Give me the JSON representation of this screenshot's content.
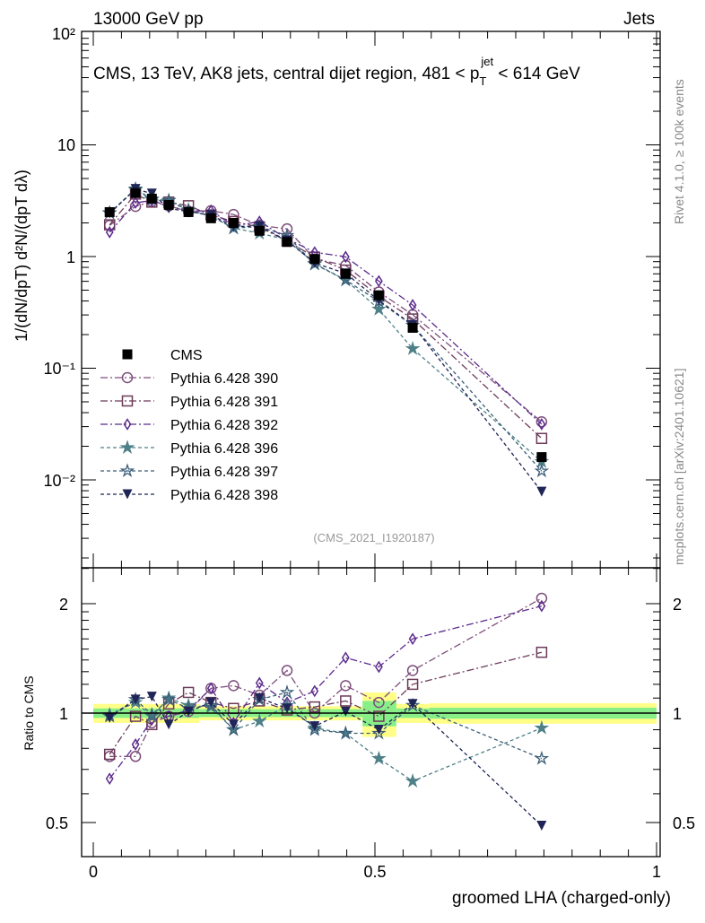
{
  "chart_data": {
    "type": "line",
    "top_left_label": "13000 GeV pp",
    "top_right_label": "Jets",
    "title": "CMS, 13 TeV, AK8 jets, central dijet region, 481 < p",
    "title_sub": "T",
    "title_sup": "jet",
    "title_end": " < 614 GeV",
    "ylabel": "1/(dN/dpT) d²N/(dpT dλ)",
    "ratio_ylabel": "Ratio to CMS",
    "xlabel": "groomed LHA (charged-only)",
    "side_label_top": "Rivet 4.1.0, ≥ 100k events",
    "side_label_bottom": "mcplots.cern.ch [arXiv:2401.10621]",
    "analysis_id": "(CMS_2021_I1920187)",
    "xlim": [
      0,
      1
    ],
    "ylim": [
      0.001,
      100
    ],
    "ratio_ylim": [
      0.4,
      2.5
    ],
    "x_ticks": [
      "0",
      "0.5",
      "1"
    ],
    "y_ticks": [
      "10⁻²",
      "10⁻¹",
      "1",
      "10",
      "10²"
    ],
    "ratio_ticks": [
      "0.5",
      "1",
      "2"
    ],
    "x": [
      0.029,
      0.075,
      0.104,
      0.134,
      0.169,
      0.209,
      0.249,
      0.295,
      0.344,
      0.393,
      0.448,
      0.507,
      0.567,
      0.796
    ],
    "cms": {
      "name": "CMS",
      "color": "#000000",
      "values": [
        2.5,
        3.7,
        3.3,
        2.9,
        2.5,
        2.2,
        2.0,
        1.7,
        1.35,
        0.95,
        0.7,
        0.45,
        0.23,
        0.016
      ]
    },
    "series": [
      {
        "name": "Pythia 6.428 390",
        "marker": "circle",
        "color": "#7e4f7c",
        "dash": "8 3 2 3",
        "ratio": [
          0.76,
          0.76,
          0.94,
          0.98,
          1.01,
          1.17,
          1.19,
          1.12,
          1.31,
          1.0,
          1.19,
          1.07,
          1.31,
          2.07
        ]
      },
      {
        "name": "Pythia 6.428 391",
        "marker": "square",
        "color": "#6d3b59",
        "dash": "8 3 2 3",
        "ratio": [
          0.77,
          0.98,
          0.93,
          1.06,
          1.14,
          1.07,
          1.03,
          1.08,
          1.02,
          1.04,
          1.08,
          0.98,
          1.2,
          1.47
        ]
      },
      {
        "name": "Pythia 6.428 392",
        "marker": "diamond",
        "color": "#5b2a8c",
        "dash": "8 3 2 3",
        "ratio": [
          0.66,
          0.82,
          0.96,
          0.98,
          1.02,
          1.17,
          0.94,
          1.21,
          1.07,
          1.15,
          1.42,
          1.34,
          1.6,
          1.97
        ]
      },
      {
        "name": "Pythia 6.428 396",
        "marker": "star",
        "color": "#4e8088",
        "dash": "4 3",
        "ratio": [
          0.99,
          1.07,
          0.98,
          1.1,
          1.05,
          1.04,
          0.9,
          0.95,
          1.05,
          0.91,
          0.88,
          0.75,
          0.65,
          0.91
        ]
      },
      {
        "name": "Pythia 6.428 397",
        "marker": "star-open",
        "color": "#3c5e78",
        "dash": "4 3",
        "ratio": [
          0.98,
          1.09,
          0.99,
          1.09,
          1.03,
          1.05,
          0.9,
          1.09,
          1.14,
          0.9,
          0.88,
          0.88,
          1.05,
          0.75
        ]
      },
      {
        "name": "Pythia 6.428 398",
        "marker": "triangle-down",
        "color": "#1f2556",
        "dash": "4 3",
        "ratio": [
          0.97,
          1.09,
          1.11,
          0.93,
          1.01,
          1.07,
          0.93,
          1.1,
          1.03,
          0.92,
          1.01,
          0.9,
          1.06,
          0.49
        ]
      }
    ],
    "uncertainty_bands": {
      "colors": {
        "inner": "#88ee88",
        "outer": "#ffff88"
      },
      "bins": [
        {
          "x": [
            0,
            0.188
          ],
          "inner": 0.03,
          "outer": 0.06
        },
        {
          "x": [
            0.188,
            0.318
          ],
          "inner": 0.025,
          "outer": 0.045
        },
        {
          "x": [
            0.318,
            0.478
          ],
          "inner": 0.025,
          "outer": 0.045
        },
        {
          "x": [
            0.478,
            0.538
          ],
          "inner": 0.08,
          "outer": 0.14
        },
        {
          "x": [
            0.538,
            0.597
          ],
          "inner": 0.03,
          "outer": 0.06
        },
        {
          "x": [
            0.597,
            1.0
          ],
          "inner": 0.035,
          "outer": 0.065
        }
      ]
    }
  }
}
